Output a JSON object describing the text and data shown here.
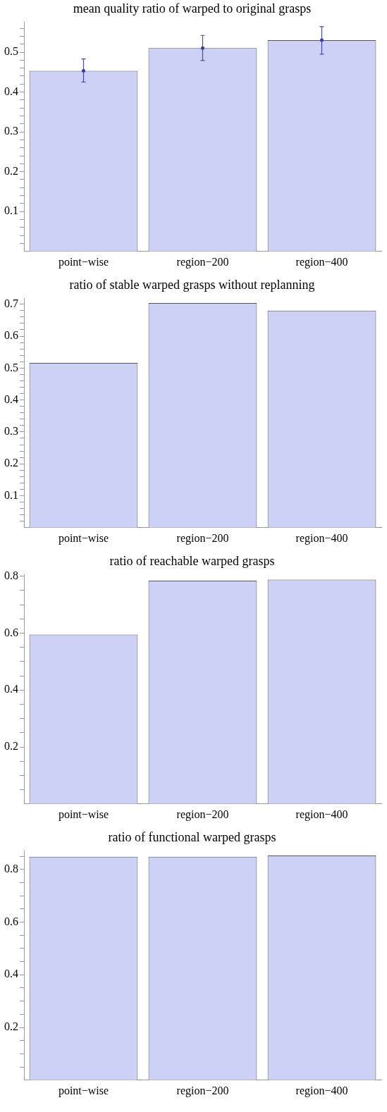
{
  "chart_data": [
    {
      "type": "bar",
      "title": "mean quality ratio of warped to original grasps",
      "categories": [
        "point−wise",
        "region−200",
        "region−400"
      ],
      "values": [
        0.453,
        0.51,
        0.53
      ],
      "errors": [
        [
          0.425,
          0.483
        ],
        [
          0.479,
          0.542
        ],
        [
          0.495,
          0.564
        ]
      ],
      "color": "#ccd1f5",
      "ylim": [
        0,
        0.575
      ],
      "yticks": [
        {
          "value": 0.02,
          "label": null
        },
        {
          "value": 0.04,
          "label": null
        },
        {
          "value": 0.06,
          "label": null
        },
        {
          "value": 0.08,
          "label": null
        },
        0.1,
        {
          "value": 0.12,
          "label": null
        },
        {
          "value": 0.14,
          "label": null
        },
        {
          "value": 0.16,
          "label": null
        },
        {
          "value": 0.18,
          "label": null
        },
        0.2,
        {
          "value": 0.22,
          "label": null
        },
        {
          "value": 0.24,
          "label": null
        },
        {
          "value": 0.26,
          "label": null
        },
        {
          "value": 0.28,
          "label": null
        },
        0.3,
        {
          "value": 0.32,
          "label": null
        },
        {
          "value": 0.34,
          "label": null
        },
        {
          "value": 0.36,
          "label": null
        },
        {
          "value": 0.38,
          "label": null
        },
        0.4,
        {
          "value": 0.42,
          "label": null
        },
        {
          "value": 0.44,
          "label": null
        },
        {
          "value": 0.46,
          "label": null
        },
        {
          "value": 0.48,
          "label": null
        },
        0.5,
        {
          "value": 0.52,
          "label": null
        },
        {
          "value": 0.54,
          "label": null
        },
        {
          "value": 0.56,
          "label": null
        }
      ]
    },
    {
      "type": "bar",
      "title": "ratio of stable warped grasps without replanning",
      "categories": [
        "point−wise",
        "region−200",
        "region−400"
      ],
      "values": [
        0.516,
        0.704,
        0.68
      ],
      "color": "#ccd1f5",
      "ylim": [
        0,
        0.718
      ],
      "yticks": [
        {
          "value": 0.02,
          "label": null
        },
        {
          "value": 0.04,
          "label": null
        },
        {
          "value": 0.06,
          "label": null
        },
        {
          "value": 0.08,
          "label": null
        },
        0.1,
        {
          "value": 0.12,
          "label": null
        },
        {
          "value": 0.14,
          "label": null
        },
        {
          "value": 0.16,
          "label": null
        },
        {
          "value": 0.18,
          "label": null
        },
        0.2,
        {
          "value": 0.22,
          "label": null
        },
        {
          "value": 0.24,
          "label": null
        },
        {
          "value": 0.26,
          "label": null
        },
        {
          "value": 0.28,
          "label": null
        },
        0.3,
        {
          "value": 0.32,
          "label": null
        },
        {
          "value": 0.34,
          "label": null
        },
        {
          "value": 0.36,
          "label": null
        },
        {
          "value": 0.38,
          "label": null
        },
        0.4,
        {
          "value": 0.42,
          "label": null
        },
        {
          "value": 0.44,
          "label": null
        },
        {
          "value": 0.46,
          "label": null
        },
        {
          "value": 0.48,
          "label": null
        },
        0.5,
        {
          "value": 0.52,
          "label": null
        },
        {
          "value": 0.54,
          "label": null
        },
        {
          "value": 0.56,
          "label": null
        },
        {
          "value": 0.58,
          "label": null
        },
        0.6,
        {
          "value": 0.62,
          "label": null
        },
        {
          "value": 0.64,
          "label": null
        },
        {
          "value": 0.66,
          "label": null
        },
        {
          "value": 0.68,
          "label": null
        },
        0.7
      ]
    },
    {
      "type": "bar",
      "title": "ratio of reachable warped grasps",
      "categories": [
        "point−wise",
        "region−200",
        "region−400"
      ],
      "values": [
        0.595,
        0.784,
        0.788
      ],
      "color": "#ccd1f5",
      "ylim": [
        0,
        0.805
      ],
      "yticks": [
        {
          "value": 0.05,
          "label": null
        },
        {
          "value": 0.1,
          "label": null
        },
        {
          "value": 0.15,
          "label": null
        },
        0.2,
        {
          "value": 0.25,
          "label": null
        },
        {
          "value": 0.3,
          "label": null
        },
        {
          "value": 0.35,
          "label": null
        },
        0.4,
        {
          "value": 0.45,
          "label": null
        },
        {
          "value": 0.5,
          "label": null
        },
        {
          "value": 0.55,
          "label": null
        },
        0.6,
        {
          "value": 0.65,
          "label": null
        },
        {
          "value": 0.7,
          "label": null
        },
        {
          "value": 0.75,
          "label": null
        },
        0.8
      ]
    },
    {
      "type": "bar",
      "title": "ratio of functional warped grasps",
      "categories": [
        "point−wise",
        "region−200",
        "region−400"
      ],
      "values": [
        0.848,
        0.848,
        0.853
      ],
      "color": "#ccd1f5",
      "ylim": [
        0,
        0.87
      ],
      "yticks": [
        {
          "value": 0.05,
          "label": null
        },
        {
          "value": 0.1,
          "label": null
        },
        {
          "value": 0.15,
          "label": null
        },
        0.2,
        {
          "value": 0.25,
          "label": null
        },
        {
          "value": 0.3,
          "label": null
        },
        {
          "value": 0.35,
          "label": null
        },
        0.4,
        {
          "value": 0.45,
          "label": null
        },
        {
          "value": 0.5,
          "label": null
        },
        {
          "value": 0.55,
          "label": null
        },
        0.6,
        {
          "value": 0.65,
          "label": null
        },
        {
          "value": 0.7,
          "label": null
        },
        {
          "value": 0.75,
          "label": null
        },
        0.8,
        {
          "value": 0.85,
          "label": null
        }
      ]
    }
  ]
}
